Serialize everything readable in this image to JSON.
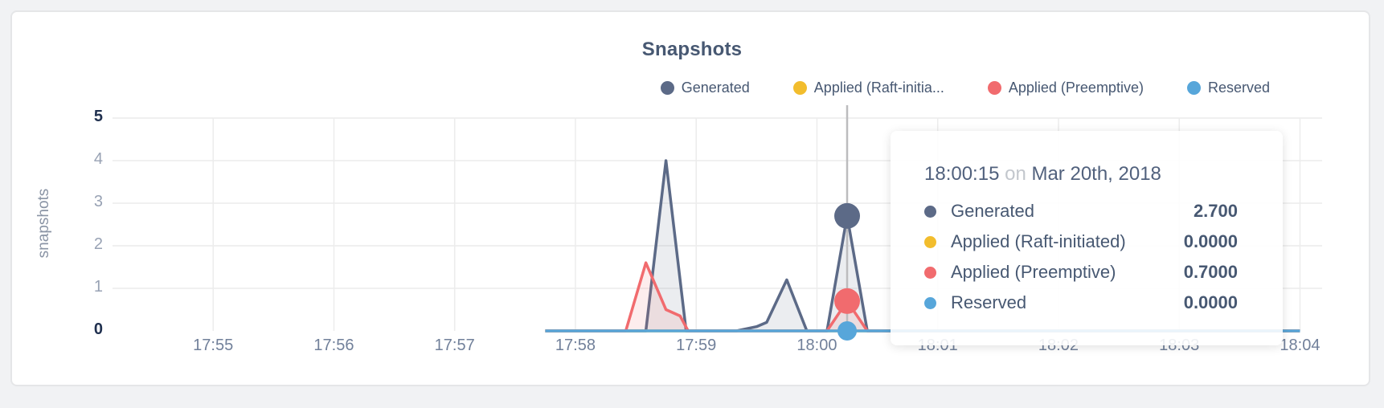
{
  "page": {
    "background": "#f1f2f4",
    "card_background": "#ffffff",
    "card_border": "#e5e6e8"
  },
  "chart_data": {
    "type": "area",
    "title": "Snapshots",
    "xlabel": "",
    "ylabel": "snapshots",
    "ylim": [
      0,
      5
    ],
    "grid": true,
    "legend_position": "top-right",
    "x_ticks": [
      "17:55",
      "17:56",
      "17:57",
      "17:58",
      "17:59",
      "18:00",
      "18:01",
      "18:02",
      "18:03",
      "18:04"
    ],
    "y_ticks": [
      0,
      1,
      2,
      3,
      4,
      5
    ],
    "y_ticks_bold": [
      0,
      5
    ],
    "y_grid_ticks": [
      1,
      2,
      3,
      4,
      5
    ],
    "x_window": {
      "start": "17:54:10",
      "end": "18:04:11"
    },
    "gridline_color": "#ececec",
    "guideline_color": "#bcbcbe",
    "series": [
      {
        "name": "Generated",
        "legend_label": "Generated",
        "color": "#5c6a87",
        "fill_opacity": 0.12,
        "points": [
          [
            "17:57:45",
            0
          ],
          [
            "17:58:35",
            0
          ],
          [
            "17:58:45",
            4.0
          ],
          [
            "17:58:55",
            0
          ],
          [
            "17:59:20",
            0
          ],
          [
            "17:59:30",
            0.1
          ],
          [
            "17:59:35",
            0.2
          ],
          [
            "17:59:45",
            1.2
          ],
          [
            "17:59:55",
            0
          ],
          [
            "18:00:05",
            0
          ],
          [
            "18:00:15",
            2.7
          ],
          [
            "18:00:25",
            0
          ],
          [
            "18:04:00",
            0
          ]
        ]
      },
      {
        "name": "Applied (Raft-initiated)",
        "legend_label": "Applied (Raft-initia...",
        "color": "#f2bd2d",
        "fill_opacity": 0.12,
        "points": [
          [
            "17:57:45",
            0
          ],
          [
            "18:04:00",
            0
          ]
        ]
      },
      {
        "name": "Applied (Preemptive)",
        "legend_label": "Applied (Preemptive)",
        "color": "#f16b6e",
        "fill_opacity": 0.12,
        "points": [
          [
            "17:57:45",
            0
          ],
          [
            "17:58:25",
            0
          ],
          [
            "17:58:35",
            1.6
          ],
          [
            "17:58:45",
            0.5
          ],
          [
            "17:58:52",
            0.35
          ],
          [
            "17:58:56",
            0
          ],
          [
            "18:00:05",
            0
          ],
          [
            "18:00:15",
            0.7
          ],
          [
            "18:00:25",
            0
          ],
          [
            "18:04:00",
            0
          ]
        ]
      },
      {
        "name": "Reserved",
        "legend_label": "Reserved",
        "color": "#57a6da",
        "fill_opacity": 0.12,
        "points": [
          [
            "17:57:45",
            0
          ],
          [
            "18:04:00",
            0
          ]
        ]
      }
    ],
    "hover": {
      "time": "18:00:15",
      "dots": [
        {
          "series": "Generated",
          "value": 2.7,
          "radius": 16
        },
        {
          "series": "Applied (Preemptive)",
          "value": 0.7,
          "radius": 16
        },
        {
          "series": "Reserved",
          "value": 0,
          "radius": 12
        }
      ]
    }
  },
  "tooltip": {
    "time": "18:00:15",
    "separator": "on",
    "date": "Mar 20th, 2018",
    "rows": [
      {
        "label": "Generated",
        "value": "2.700",
        "color": "#5c6a87"
      },
      {
        "label": "Applied (Raft-initiated)",
        "value": "0.0000",
        "color": "#f2bd2d"
      },
      {
        "label": "Applied (Preemptive)",
        "value": "0.7000",
        "color": "#f16b6e"
      },
      {
        "label": "Reserved",
        "value": "0.0000",
        "color": "#57a6da"
      }
    ]
  }
}
